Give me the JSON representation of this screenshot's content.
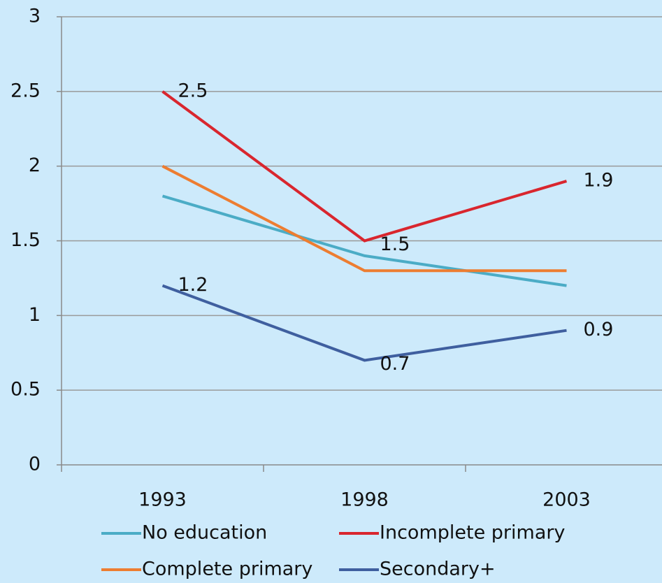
{
  "chart_data": {
    "type": "line",
    "categories": [
      "1993",
      "1998",
      "2003"
    ],
    "series": [
      {
        "name": "No education",
        "color": "#4bacc6",
        "values": [
          1.8,
          1.4,
          1.2
        ]
      },
      {
        "name": "Incomplete primary",
        "color": "#d9262e",
        "values": [
          2.5,
          1.5,
          1.9
        ],
        "data_labels": true
      },
      {
        "name": "Complete primary",
        "color": "#ed7d31",
        "values": [
          2.0,
          1.3,
          1.3
        ]
      },
      {
        "name": "Secondary+",
        "color": "#3f5f9f",
        "values": [
          1.2,
          0.7,
          0.9
        ],
        "data_labels": true
      }
    ],
    "ylim": [
      0,
      3
    ],
    "yticks": [
      0,
      0.5,
      1,
      1.5,
      2,
      2.5,
      3
    ],
    "grid": true,
    "legend": "bottom"
  }
}
